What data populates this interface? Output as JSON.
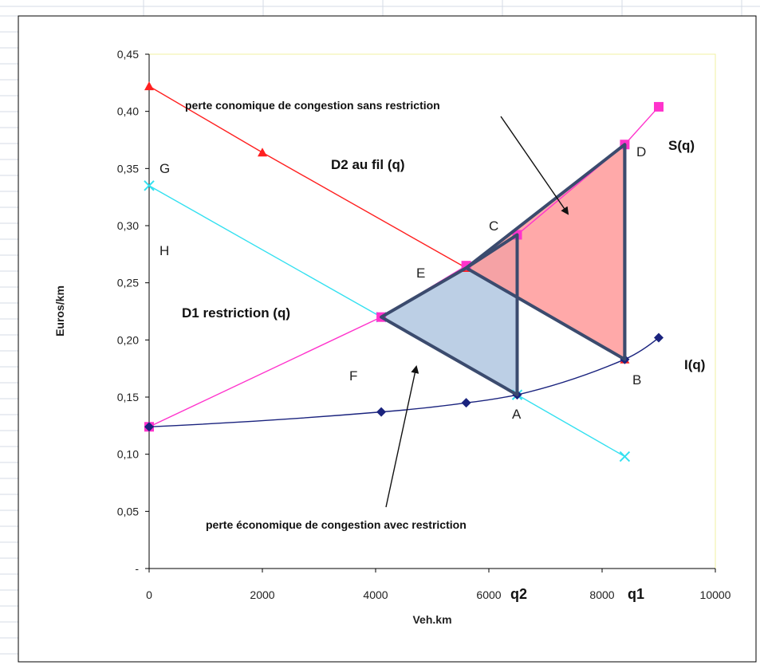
{
  "chart_data": {
    "type": "line",
    "xlabel": "Veh.km",
    "ylabel": "Euros/km",
    "xlim": [
      0,
      10000
    ],
    "ylim": [
      0,
      0.45
    ],
    "x_ticks": [
      "0",
      "2000",
      "4000",
      "6000",
      "8000",
      "10000"
    ],
    "y_ticks": [
      "-",
      "0,05",
      "0,10",
      "0,15",
      "0,20",
      "0,25",
      "0,30",
      "0,35",
      "0,40",
      "0,45"
    ],
    "grid": false,
    "series": [
      {
        "key": "d2",
        "color": "#ff2020",
        "marker": "triangle",
        "points": [
          [
            0,
            0.422
          ],
          [
            2000,
            0.364
          ],
          [
            5600,
            0.263
          ],
          [
            8400,
            0.183
          ]
        ]
      },
      {
        "key": "d1",
        "color": "#33e0f0",
        "marker": "x",
        "points": [
          [
            0,
            0.335
          ],
          [
            4100,
            0.22
          ],
          [
            6500,
            0.152
          ],
          [
            8400,
            0.098
          ]
        ]
      },
      {
        "key": "s",
        "color": "#ff33cc",
        "marker": "square",
        "points": [
          [
            0,
            0.124
          ],
          [
            4100,
            0.22
          ],
          [
            5600,
            0.265
          ],
          [
            6500,
            0.292
          ],
          [
            8400,
            0.371
          ],
          [
            9000,
            0.404
          ]
        ]
      },
      {
        "key": "i",
        "color": "#1a237e",
        "marker": "diamond",
        "points": [
          [
            0,
            0.124
          ],
          [
            4100,
            0.137
          ],
          [
            5600,
            0.145
          ],
          [
            6500,
            0.152
          ],
          [
            8400,
            0.183
          ],
          [
            9000,
            0.202
          ]
        ]
      }
    ],
    "regions": [
      {
        "key": "loss_with_restriction",
        "color": "#b8cce4",
        "points": [
          [
            4100,
            0.22
          ],
          [
            5600,
            0.263
          ],
          [
            6500,
            0.292
          ],
          [
            6500,
            0.152
          ]
        ]
      },
      {
        "key": "loss_without_restriction",
        "color": "#ff9a9a",
        "points": [
          [
            5600,
            0.263
          ],
          [
            8400,
            0.371
          ],
          [
            8400,
            0.183
          ]
        ]
      }
    ],
    "curve_labels": {
      "d2": "D2 au fil (q)",
      "d1": "D1 restriction  (q)",
      "s": "S(q)",
      "i": "I(q)"
    },
    "point_labels": [
      "A",
      "B",
      "C",
      "D",
      "E",
      "F",
      "G",
      "H"
    ],
    "q_labels": {
      "q1": "q1",
      "q2": "q2"
    },
    "annotations": {
      "without": "perte conomique de congestion sans restriction",
      "with": "perte économique de congestion avec restriction"
    }
  }
}
